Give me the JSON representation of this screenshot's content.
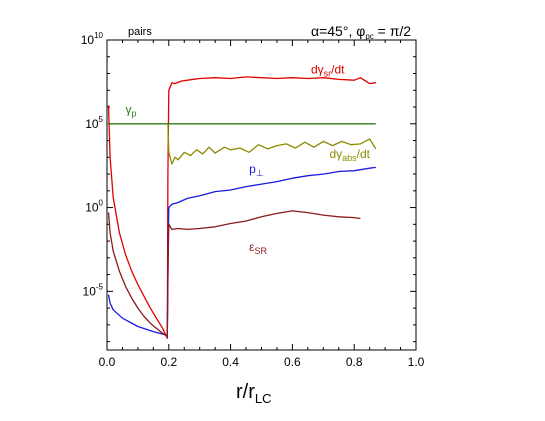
{
  "chart_data": {
    "type": "line",
    "title": "α=45°, φpc = π/2",
    "title_parts": {
      "alpha": "α=45°, ",
      "phi": "φ",
      "phi_sub": "pc",
      "rest": " = π/2"
    },
    "corner_label": "pairs",
    "xlabel": "r/r",
    "xlabel_sub": "LC",
    "ylabel": "",
    "xlim": [
      0.0,
      1.0
    ],
    "y_scale": "log",
    "ylim_exponent": [
      -8.5,
      10
    ],
    "x_ticks": [
      "0.0",
      "0.2",
      "0.4",
      "0.6",
      "0.8",
      "1.0"
    ],
    "y_ticks": [
      {
        "base": "10",
        "exp": "10",
        "value_exp": 10
      },
      {
        "base": "10",
        "exp": "5",
        "value_exp": 5
      },
      {
        "base": "10",
        "exp": "0",
        "value_exp": 0
      },
      {
        "base": "10",
        "exp": "-5",
        "value_exp": -5
      }
    ],
    "grid": false,
    "legend": "inline labels",
    "series": [
      {
        "name": "dγsr/dt",
        "label_parts": {
          "main": "dγ",
          "sub": "sr",
          "rest": "/dt"
        },
        "color": "#e00000",
        "points": [
          [
            0.005,
            6.1
          ],
          [
            0.01,
            3.0
          ],
          [
            0.02,
            0.6
          ],
          [
            0.04,
            -1.5
          ],
          [
            0.06,
            -2.8
          ],
          [
            0.08,
            -3.8
          ],
          [
            0.1,
            -4.6
          ],
          [
            0.12,
            -5.3
          ],
          [
            0.14,
            -6.0
          ],
          [
            0.16,
            -6.6
          ],
          [
            0.18,
            -7.2
          ],
          [
            0.19,
            -7.6
          ],
          [
            0.195,
            -7.8
          ],
          [
            0.197,
            2.0
          ],
          [
            0.2,
            7.0
          ],
          [
            0.21,
            7.45
          ],
          [
            0.22,
            7.4
          ],
          [
            0.24,
            7.55
          ],
          [
            0.26,
            7.6
          ],
          [
            0.3,
            7.7
          ],
          [
            0.35,
            7.75
          ],
          [
            0.4,
            7.7
          ],
          [
            0.45,
            7.8
          ],
          [
            0.5,
            7.75
          ],
          [
            0.55,
            7.7
          ],
          [
            0.6,
            7.75
          ],
          [
            0.65,
            7.7
          ],
          [
            0.7,
            7.75
          ],
          [
            0.75,
            7.65
          ],
          [
            0.8,
            7.6
          ],
          [
            0.82,
            7.75
          ],
          [
            0.85,
            7.4
          ],
          [
            0.87,
            7.45
          ]
        ],
        "label_pos": [
          0.66,
          8.0
        ]
      },
      {
        "name": "γp",
        "label_parts": {
          "main": "γ",
          "sub": "p",
          "rest": ""
        },
        "color": "#2e7d1a",
        "points": [
          [
            0.0,
            5.0
          ],
          [
            0.87,
            5.0
          ]
        ],
        "label_pos": [
          0.06,
          5.6
        ]
      },
      {
        "name": "dγabs/dt",
        "label_parts": {
          "main": "dγ",
          "sub": "abs",
          "rest": "/dt"
        },
        "color": "#8c8c00",
        "points": [
          [
            0.197,
            5.0
          ],
          [
            0.2,
            3.3
          ],
          [
            0.21,
            2.6
          ],
          [
            0.22,
            3.0
          ],
          [
            0.23,
            2.85
          ],
          [
            0.25,
            3.3
          ],
          [
            0.27,
            3.1
          ],
          [
            0.29,
            3.45
          ],
          [
            0.31,
            3.2
          ],
          [
            0.33,
            3.6
          ],
          [
            0.35,
            3.25
          ],
          [
            0.38,
            3.6
          ],
          [
            0.4,
            3.45
          ],
          [
            0.43,
            3.55
          ],
          [
            0.46,
            3.3
          ],
          [
            0.49,
            3.75
          ],
          [
            0.52,
            3.5
          ],
          [
            0.55,
            3.7
          ],
          [
            0.58,
            3.8
          ],
          [
            0.61,
            3.55
          ],
          [
            0.64,
            3.9
          ],
          [
            0.67,
            3.6
          ],
          [
            0.7,
            3.95
          ],
          [
            0.73,
            3.7
          ],
          [
            0.76,
            3.95
          ],
          [
            0.79,
            3.75
          ],
          [
            0.82,
            3.8
          ],
          [
            0.85,
            4.1
          ],
          [
            0.87,
            3.5
          ]
        ],
        "label_pos": [
          0.72,
          2.95
        ]
      },
      {
        "name": "p⊥",
        "label_parts": {
          "main": "p",
          "sub": "⊥",
          "rest": ""
        },
        "color": "#1a1ae0",
        "points": [
          [
            0.005,
            -5.2
          ],
          [
            0.01,
            -5.7
          ],
          [
            0.02,
            -6.1
          ],
          [
            0.05,
            -6.6
          ],
          [
            0.1,
            -7.1
          ],
          [
            0.15,
            -7.4
          ],
          [
            0.19,
            -7.6
          ],
          [
            0.195,
            -7.7
          ],
          [
            0.198,
            -2.0
          ],
          [
            0.2,
            0.0
          ],
          [
            0.21,
            0.2
          ],
          [
            0.23,
            0.3
          ],
          [
            0.26,
            0.55
          ],
          [
            0.3,
            0.7
          ],
          [
            0.35,
            0.95
          ],
          [
            0.4,
            1.05
          ],
          [
            0.45,
            1.25
          ],
          [
            0.5,
            1.4
          ],
          [
            0.55,
            1.55
          ],
          [
            0.6,
            1.75
          ],
          [
            0.65,
            1.9
          ],
          [
            0.7,
            2.0
          ],
          [
            0.75,
            2.15
          ],
          [
            0.8,
            2.2
          ],
          [
            0.85,
            2.35
          ],
          [
            0.87,
            2.4
          ]
        ],
        "label_pos": [
          0.46,
          2.05
        ]
      },
      {
        "name": "εSR",
        "label_parts": {
          "main": "ε",
          "sub": "SR",
          "rest": ""
        },
        "color": "#8b1a1a",
        "points": [
          [
            0.005,
            -0.3
          ],
          [
            0.01,
            -1.5
          ],
          [
            0.02,
            -2.6
          ],
          [
            0.04,
            -3.8
          ],
          [
            0.06,
            -4.7
          ],
          [
            0.08,
            -5.4
          ],
          [
            0.1,
            -6.0
          ],
          [
            0.12,
            -6.5
          ],
          [
            0.14,
            -6.9
          ],
          [
            0.16,
            -7.2
          ],
          [
            0.18,
            -7.5
          ],
          [
            0.195,
            -7.7
          ],
          [
            0.198,
            -3.0
          ],
          [
            0.2,
            -1.0
          ],
          [
            0.21,
            -1.3
          ],
          [
            0.23,
            -1.25
          ],
          [
            0.26,
            -1.3
          ],
          [
            0.3,
            -1.25
          ],
          [
            0.35,
            -1.15
          ],
          [
            0.4,
            -0.95
          ],
          [
            0.45,
            -0.8
          ],
          [
            0.5,
            -0.55
          ],
          [
            0.55,
            -0.35
          ],
          [
            0.6,
            -0.2
          ],
          [
            0.65,
            -0.3
          ],
          [
            0.7,
            -0.45
          ],
          [
            0.75,
            -0.55
          ],
          [
            0.8,
            -0.6
          ],
          [
            0.82,
            -0.65
          ]
        ],
        "label_pos": [
          0.46,
          -2.6
        ]
      }
    ]
  }
}
